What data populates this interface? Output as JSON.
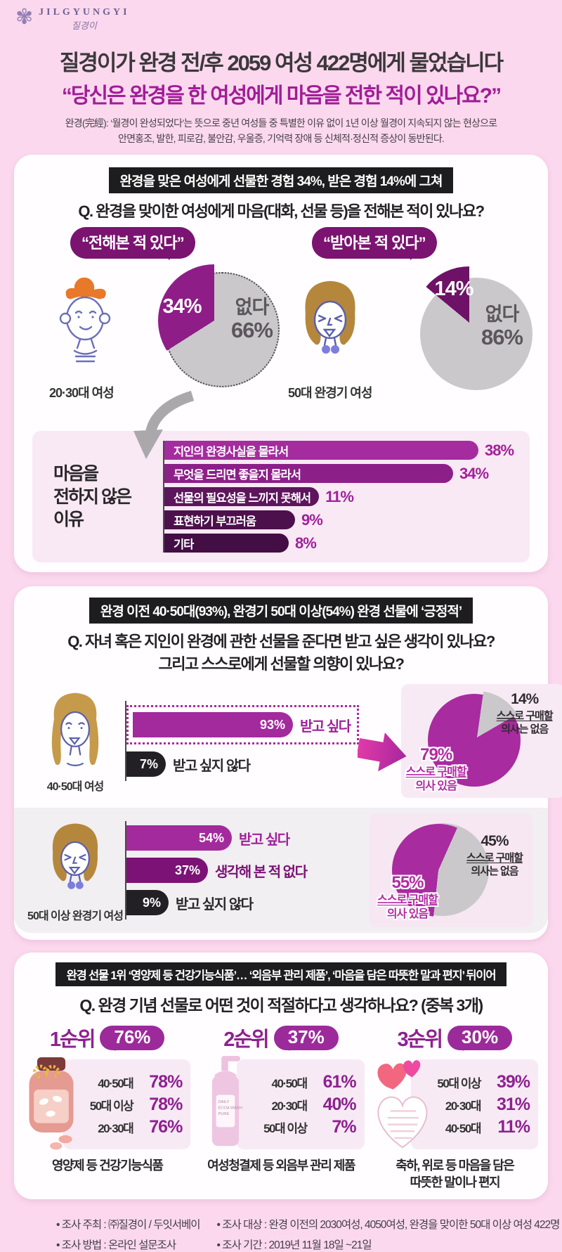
{
  "colors": {
    "page_bg": "#fbd8ee",
    "card_bg": "#fffdff",
    "accent_magenta": "#a0219a",
    "mid_purple": "#8e1d88",
    "deep_purple": "#6d1266",
    "badge_black": "#1d1d1f",
    "pie_gray": "#cac8ca",
    "panel_pink": "#f8e9f4"
  },
  "logo": {
    "name": "JILGYUNGYI",
    "sub": "질경이"
  },
  "header": {
    "title": "질경이가 완경 전/후 2059 여성 422명에게 물었습니다",
    "quote": "“당신은 완경을 한 여성에게 마음을 전한 적이 있나요?”",
    "desc1": "완경(完經): ‘월경이 완성되었다’는 뜻으로 중년 여성들 중 특별한 이유 없이 1년 이상 월경이 지속되지 않는 현상으로",
    "desc2": "안면홍조, 발한, 피로감, 불안감, 우울증, 기억력 장애 등 신체적·정신적 증상이 동반된다."
  },
  "section1": {
    "badge": "완경을 맞은 여성에게 선물한 경험 34%, 받은 경험 14%에 그쳐",
    "question": "Q. 완경을 맞이한 여성에게 마음(대화, 선물 등)을 전해본 적이 있나요?",
    "groups": [
      {
        "bubble": "“전해본 적 있다”",
        "person": "20·30대 여성",
        "yes_pct": "34%",
        "no_label": "없다",
        "no_pct": "66%"
      },
      {
        "bubble": "“받아본 적 있다”",
        "person": "50대 완경기 여성",
        "yes_pct": "14%",
        "no_label": "없다",
        "no_pct": "86%"
      }
    ],
    "reasons": {
      "t1": "마음을",
      "t2": "전하지 않은",
      "t3": "이유",
      "bars": [
        {
          "label": "지인의 완경사실을 몰라서",
          "pct": "38%",
          "value": 38
        },
        {
          "label": "무엇을 드리면 좋을지 몰라서",
          "pct": "34%",
          "value": 34
        },
        {
          "label": "선물의 필요성을 느끼지 못해서",
          "pct": "11%",
          "value": 11
        },
        {
          "label": "표현하기 부끄러움",
          "pct": "9%",
          "value": 9
        },
        {
          "label": "기타",
          "pct": "8%",
          "value": 8
        }
      ]
    }
  },
  "section2": {
    "badge": "완경 이전 40·50대(93%), 완경기 50대 이상(54%) 완경 선물에 ‘긍정적’",
    "q1": "Q. 자녀 혹은 지인이 완경에 관한 선물을 준다면 받고 싶은 생각이 있나요?",
    "q2": "그리고 스스로에게 선물할 의향이 있나요?",
    "groupA": {
      "person": "40·50대 여성",
      "bars": [
        {
          "pct": "93%",
          "label": "받고 싶다",
          "value": 93
        },
        {
          "pct": "7%",
          "label": "받고 싶지 않다",
          "value": 7
        }
      ],
      "pie": {
        "yes_pct": "79%",
        "yes_l1": "스스로 구매할",
        "yes_l2": "의사 있음",
        "no_pct": "14%",
        "no_l1": "스스로 구매할",
        "no_l2": "의사는 없음"
      }
    },
    "groupB": {
      "person": "50대 이상 완경기 여성",
      "bars": [
        {
          "pct": "54%",
          "label": "받고 싶다",
          "value": 54
        },
        {
          "pct": "37%",
          "label": "생각해 본 적 없다",
          "value": 37
        },
        {
          "pct": "9%",
          "label": "받고 싶지 않다",
          "value": 9
        }
      ],
      "pie": {
        "yes_pct": "55%",
        "yes_l1": "스스로 구매할",
        "yes_l2": "의사 있음",
        "no_pct": "45%",
        "no_l1": "스스로 구매할",
        "no_l2": "의사는 없음"
      }
    }
  },
  "section3": {
    "badge": "완경 선물 1위 ‘영양제 등 건강기능식품’… ‘외음부 관리 제품’, ‘마음을 담은 따뜻한 말과 편지’ 뒤이어",
    "question": "Q. 완경 기념 선물로 어떤 것이 적절하다고 생각하나요? (중복 3개)",
    "columns": [
      {
        "rank": "1순위",
        "pct": "76%",
        "rows": [
          {
            "label": "40·50대",
            "pct": "78%"
          },
          {
            "label": "50대 이상",
            "pct": "78%"
          },
          {
            "label": "20·30대",
            "pct": "76%"
          }
        ],
        "caption1": "영양제 등 건강기능식품",
        "caption2": ""
      },
      {
        "rank": "2순위",
        "pct": "37%",
        "rows": [
          {
            "label": "40·50대",
            "pct": "61%"
          },
          {
            "label": "20·30대",
            "pct": "40%"
          },
          {
            "label": "50대 이상",
            "pct": "7%"
          }
        ],
        "caption1": "여성청결제 등 외음부 관리 제품",
        "caption2": "",
        "bottle_label1": "DAILY",
        "bottle_label2": "ECOA WASH",
        "bottle_label3": "PURE"
      },
      {
        "rank": "3순위",
        "pct": "30%",
        "rows": [
          {
            "label": "50대 이상",
            "pct": "39%"
          },
          {
            "label": "20·30대",
            "pct": "31%"
          },
          {
            "label": "40·50대",
            "pct": "11%"
          }
        ],
        "caption1": "축하, 위로 등 마음을 담은",
        "caption2": "따뜻한 말이나 편지"
      }
    ]
  },
  "footer": {
    "host": "조사 주최 : ㈜질경이 / 두잇서베이",
    "method": "조사 방법 : 온라인 설문조사",
    "target": "조사 대상 : 완경 이전의 2030여성, 4050여성, 완경을 맞이한 50대 이상 여성 422명",
    "period": "조사 기간 : 2019년 11월 18일 ~21일"
  },
  "chart_data": [
    {
      "type": "pie",
      "title": "마음(대화, 선물 등)을 전해본 적 — 20·30대 여성",
      "labels": [
        "전해본 적 있다",
        "없다"
      ],
      "values": [
        34,
        66
      ],
      "unit": "%"
    },
    {
      "type": "pie",
      "title": "마음을 받아본 적 — 50대 완경기 여성",
      "labels": [
        "받아본 적 있다",
        "없다"
      ],
      "values": [
        14,
        86
      ],
      "unit": "%"
    },
    {
      "type": "bar",
      "orientation": "horizontal",
      "title": "마음을 전하지 않은 이유",
      "categories": [
        "지인의 완경사실을 몰라서",
        "무엇을 드리면 좋을지 몰라서",
        "선물의 필요성을 느끼지 못해서",
        "표현하기 부끄러움",
        "기타"
      ],
      "values": [
        38,
        34,
        11,
        9,
        8
      ],
      "unit": "%"
    },
    {
      "type": "bar",
      "orientation": "horizontal",
      "title": "완경 선물 수용 의향 — 40·50대 여성",
      "categories": [
        "받고 싶다",
        "받고 싶지 않다"
      ],
      "values": [
        93,
        7
      ],
      "unit": "%"
    },
    {
      "type": "pie",
      "title": "스스로 구매 의사 — 40·50대 여성",
      "labels": [
        "스스로 구매할 의사 있음",
        "스스로 구매할 의사는 없음"
      ],
      "values": [
        79,
        14
      ],
      "unit": "%"
    },
    {
      "type": "bar",
      "orientation": "horizontal",
      "title": "완경 선물 수용 의향 — 50대 이상 완경기 여성",
      "categories": [
        "받고 싶다",
        "생각해 본 적 없다",
        "받고 싶지 않다"
      ],
      "values": [
        54,
        37,
        9
      ],
      "unit": "%"
    },
    {
      "type": "pie",
      "title": "스스로 구매 의사 — 50대 이상 완경기 여성",
      "labels": [
        "스스로 구매할 의사 있음",
        "스스로 구매할 의사는 없음"
      ],
      "values": [
        55,
        45
      ],
      "unit": "%"
    },
    {
      "type": "bar",
      "title": "완경 기념 선물 1순위 — 영양제 등 건강기능식품 (전체 76%)",
      "categories": [
        "40·50대",
        "50대 이상",
        "20·30대"
      ],
      "values": [
        78,
        78,
        76
      ],
      "unit": "%"
    },
    {
      "type": "bar",
      "title": "완경 기념 선물 2순위 — 여성청결제 등 외음부 관리 제품 (전체 37%)",
      "categories": [
        "40·50대",
        "20·30대",
        "50대 이상"
      ],
      "values": [
        61,
        40,
        7
      ],
      "unit": "%"
    },
    {
      "type": "bar",
      "title": "완경 기념 선물 3순위 — 따뜻한 말이나 편지 (전체 30%)",
      "categories": [
        "50대 이상",
        "20·30대",
        "40·50대"
      ],
      "values": [
        39,
        31,
        11
      ],
      "unit": "%"
    }
  ]
}
